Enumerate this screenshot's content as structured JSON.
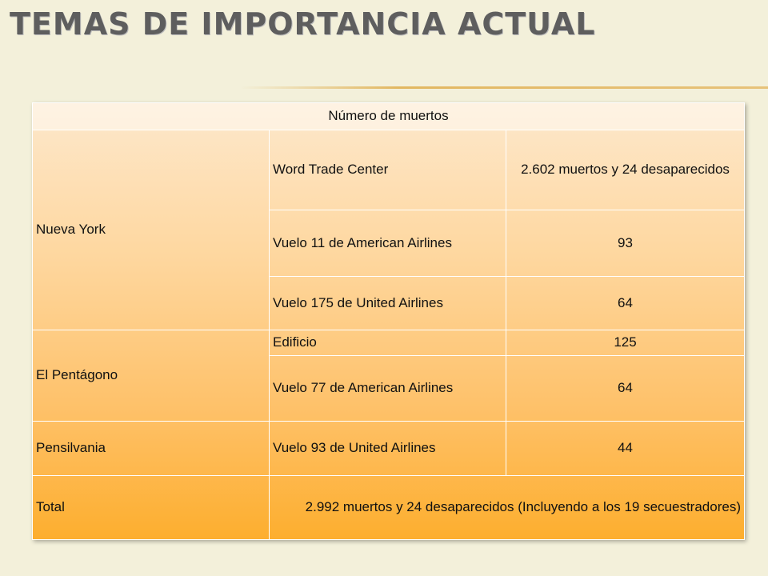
{
  "slide": {
    "title": "TEMAS DE IMPORTANCIA ACTUAL"
  },
  "table": {
    "header": "Número de muertos",
    "new_york": {
      "label": "Nueva York",
      "rows": [
        {
          "place": "Word Trade Center",
          "value": "2.602 muertos y 24 desaparecidos"
        },
        {
          "place": "Vuelo 11 de American Airlines",
          "value": "93"
        },
        {
          "place": "Vuelo 175 de United Airlines",
          "value": "64"
        }
      ]
    },
    "pentagon": {
      "label": "El Pentágono",
      "rows": [
        {
          "place": "Edificio",
          "value": "125"
        },
        {
          "place": "Vuelo 77 de American Airlines",
          "value": "64"
        }
      ]
    },
    "pennsylvania": {
      "label": "Pensilvania",
      "rows": [
        {
          "place": "Vuelo 93 de United Airlines",
          "value": "44"
        }
      ]
    },
    "total": {
      "label": "Total",
      "value": "2.992 muertos y 24 desaparecidos (Incluyendo a los 19 secuestradores)"
    }
  }
}
